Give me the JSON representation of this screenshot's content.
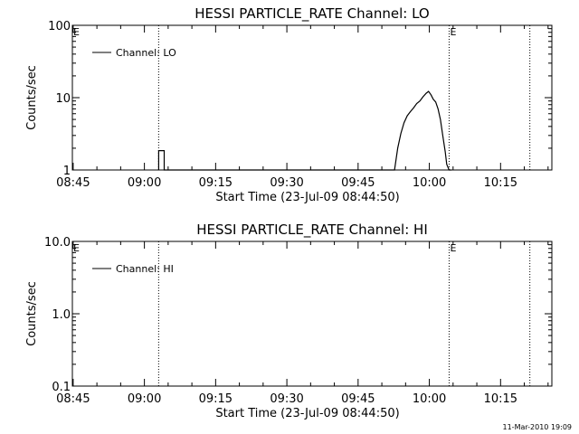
{
  "footer_timestamp": "11-Mar-2010 19:09",
  "chart_data": [
    {
      "type": "line",
      "title": "HESSI PARTICLE_RATE Channel: LO",
      "xlabel": "Start Time (23-Jul-09 08:44:50)",
      "ylabel": "Counts/sec",
      "y_scale": "log",
      "ylim": [
        1,
        100
      ],
      "y_ticks": [
        1,
        10,
        100
      ],
      "y_tick_labels": [
        "1",
        "10",
        "100"
      ],
      "xlim": [
        "08:44:50",
        "10:25:48"
      ],
      "x_ticks": [
        "08:45",
        "09:00",
        "09:15",
        "09:30",
        "09:45",
        "10:00",
        "10:15"
      ],
      "x_tick_labels": [
        "08:45",
        "09:00",
        "09:15",
        "09:30",
        "09:45",
        "10:00",
        "10:15"
      ],
      "vertical_lines": [
        "09:03:00",
        "10:04:10",
        "10:21:10"
      ],
      "markers": [
        {
          "time": "08:44:50",
          "text": "E"
        },
        {
          "time": "10:04:10",
          "text": "E"
        }
      ],
      "legend": {
        "entries": [
          "Channel: LO"
        ],
        "position": "top-left"
      },
      "series": [
        {
          "name": "Channel: LO",
          "points": [
            [
              "09:03:00",
              1.0
            ],
            [
              "09:03:00",
              1.85
            ],
            [
              "09:04:10",
              1.85
            ],
            [
              "09:04:10",
              1.0
            ],
            [
              "09:52:40",
              1.0
            ],
            [
              "09:53:20",
              2.0
            ],
            [
              "09:54:00",
              3.2
            ],
            [
              "09:54:40",
              4.5
            ],
            [
              "09:55:20",
              5.6
            ],
            [
              "09:56:00",
              6.4
            ],
            [
              "09:56:40",
              7.2
            ],
            [
              "09:57:20",
              8.3
            ],
            [
              "09:58:00",
              9.0
            ],
            [
              "09:58:40",
              10.3
            ],
            [
              "09:59:20",
              11.5
            ],
            [
              "09:59:50",
              12.2
            ],
            [
              "10:00:20",
              11.0
            ],
            [
              "10:00:50",
              9.5
            ],
            [
              "10:01:20",
              8.7
            ],
            [
              "10:01:50",
              7.0
            ],
            [
              "10:02:20",
              5.0
            ],
            [
              "10:02:50",
              3.0
            ],
            [
              "10:03:20",
              1.8
            ],
            [
              "10:03:40",
              1.2
            ],
            [
              "10:04:10",
              1.0
            ],
            [
              "10:04:40",
              1.0
            ]
          ]
        }
      ]
    },
    {
      "type": "line",
      "title": "HESSI PARTICLE_RATE Channel: HI",
      "xlabel": "Start Time (23-Jul-09 08:44:50)",
      "ylabel": "Counts/sec",
      "y_scale": "log",
      "ylim": [
        0.1,
        10
      ],
      "y_ticks": [
        0.1,
        1,
        10
      ],
      "y_tick_labels": [
        "0.1",
        "1.0",
        "10.0"
      ],
      "xlim": [
        "08:44:50",
        "10:25:48"
      ],
      "x_ticks": [
        "08:45",
        "09:00",
        "09:15",
        "09:30",
        "09:45",
        "10:00",
        "10:15"
      ],
      "x_tick_labels": [
        "08:45",
        "09:00",
        "09:15",
        "09:30",
        "09:45",
        "10:00",
        "10:15"
      ],
      "vertical_lines": [
        "09:03:00",
        "10:04:10",
        "10:21:10"
      ],
      "markers": [
        {
          "time": "08:44:50",
          "text": "E"
        },
        {
          "time": "10:04:10",
          "text": "E"
        }
      ],
      "legend": {
        "entries": [
          "Channel: HI"
        ],
        "position": "top-left"
      },
      "series": [
        {
          "name": "Channel: HI",
          "points": []
        }
      ]
    }
  ]
}
